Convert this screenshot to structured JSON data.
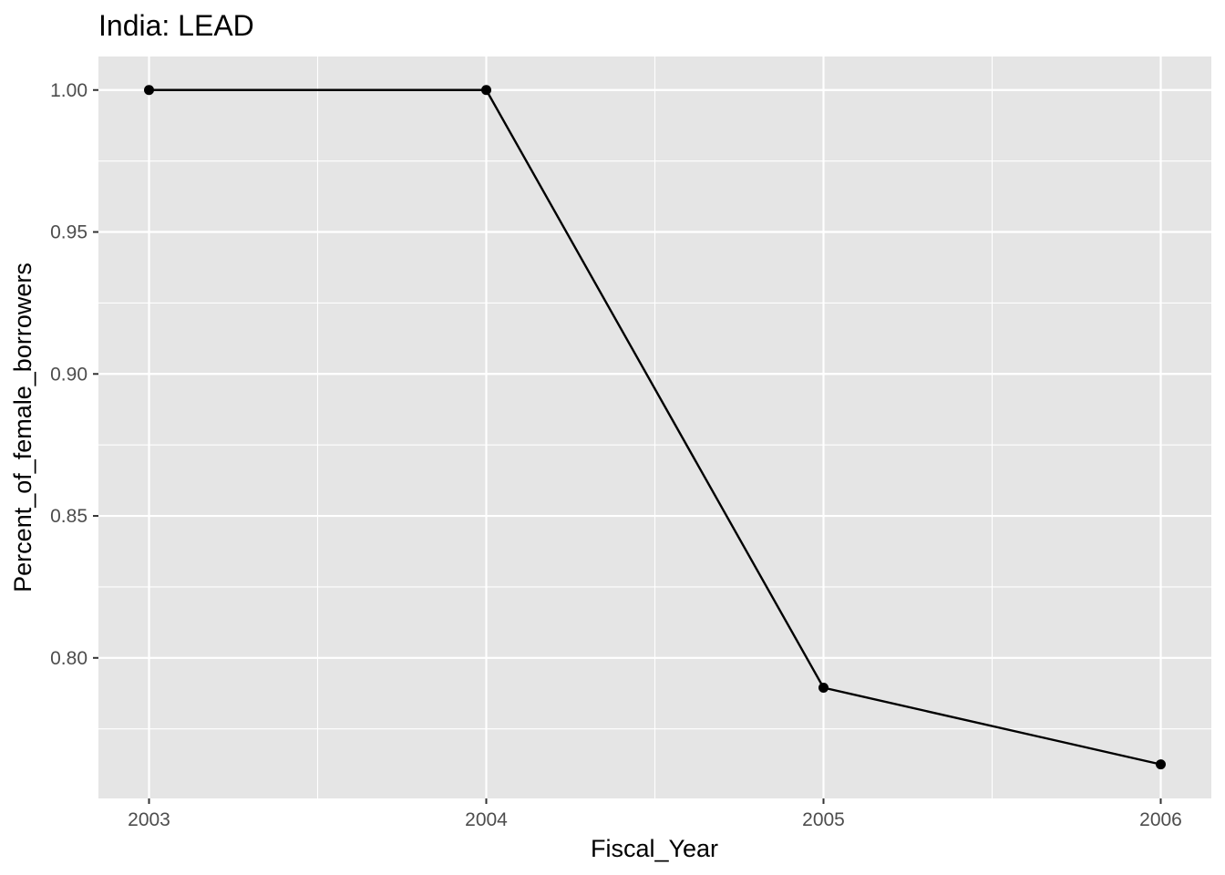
{
  "chart_data": {
    "type": "line",
    "title": "India:  LEAD",
    "xlabel": "Fiscal_Year",
    "ylabel": "Percent_of_female_borrowers",
    "x": [
      2003,
      2004,
      2005,
      2006
    ],
    "series": [
      {
        "values": [
          1.0,
          1.0,
          0.7895,
          0.7625
        ]
      }
    ],
    "xticks": [
      "2003",
      "2004",
      "2005",
      "2006"
    ],
    "yticks": [
      "0.80",
      "0.85",
      "0.90",
      "0.95",
      "1.00"
    ],
    "xlim": [
      2002.85,
      2006.15
    ],
    "ylim": [
      0.7505,
      1.0118
    ],
    "grid": true,
    "colors": {
      "panel": "#e5e5e5",
      "grid": "#ffffff",
      "line": "#000000",
      "tick_text": "#4d4d4d"
    }
  }
}
